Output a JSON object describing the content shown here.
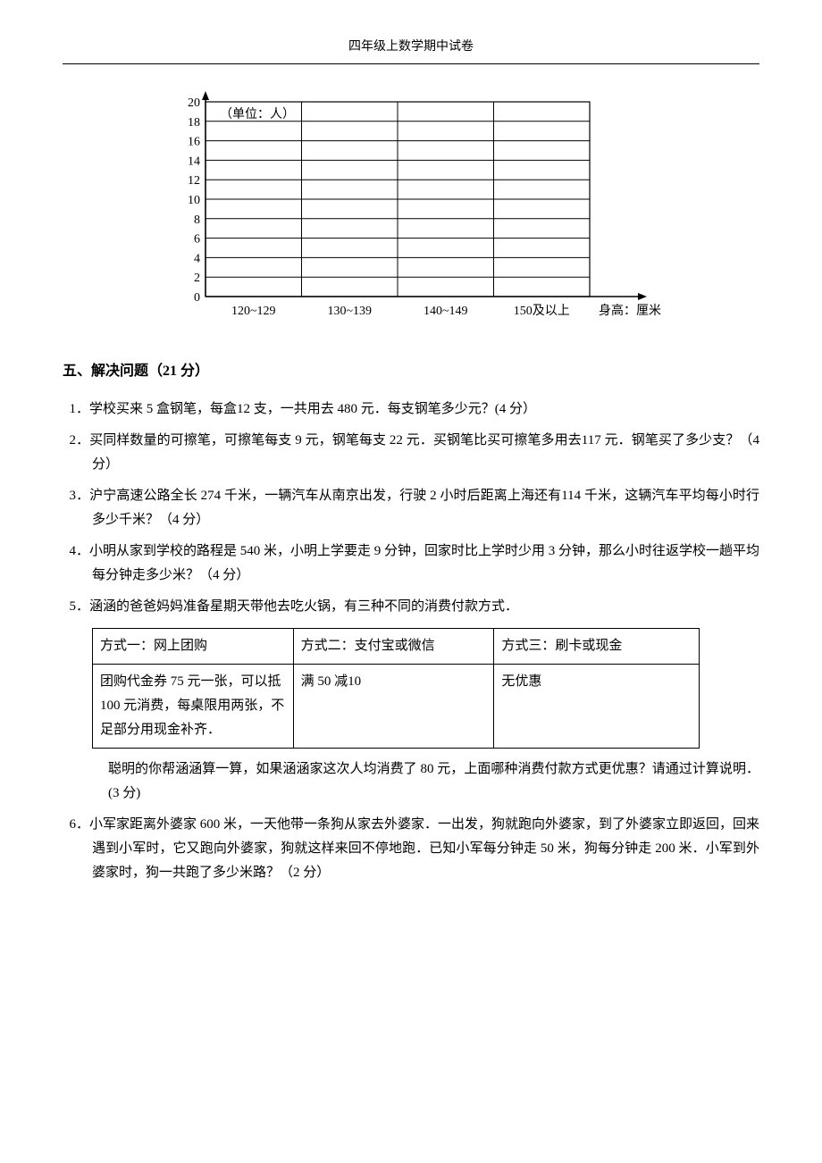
{
  "header": "四年级上数学期中试卷",
  "chart": {
    "type": "bar",
    "unit_label": "（单位：人）",
    "y_ticks": [
      0,
      2,
      4,
      6,
      8,
      10,
      12,
      14,
      16,
      18,
      20
    ],
    "categories": [
      "120~129",
      "130~139",
      "140~149",
      "150及以上"
    ],
    "x_axis_label": "身高：厘米",
    "bar_fill": "#ffffff",
    "bar_stroke": "#000000",
    "axis_color": "#000000",
    "grid_color": "#000000",
    "background": "#ffffff",
    "bar_width_ratio": 0.4,
    "label_fontsize": 14,
    "tick_fontsize": 14
  },
  "section5": {
    "title": "五、解决问题（21 分）",
    "problems": {
      "p1": "1．学校买来 5 盒钢笔，每盒12 支，一共用去 480 元．每支钢笔多少元？(4 分）",
      "p2": "2．买同样数量的可擦笔，可擦笔每支 9 元，钢笔每支 22 元．买钢笔比买可擦笔多用去117 元．钢笔买了多少支？（4 分）",
      "p3": "3．沪宁高速公路全长 274 千米，一辆汽车从南京出发，行驶 2 小时后距离上海还有114 千米，这辆汽车平均每小时行多少千米？（4 分）",
      "p4": "4．小明从家到学校的路程是 540 米，小明上学要走 9 分钟，回家时比上学时少用 3 分钟，那么小时往返学校一趟平均每分钟走多少米？（4 分）",
      "p5_intro": "5．涵涵的爸爸妈妈准备星期天带他去吃火锅，有三种不同的消费付款方式．",
      "p5_table": {
        "row1": {
          "c1": "方式一：网上团购",
          "c2": "方式二：支付宝或微信",
          "c3": "方式三：刷卡或现金"
        },
        "row2": {
          "c1": "团购代金券 75 元一张，可以抵100 元消费，每桌限用两张，不足部分用现金补齐．",
          "c2": "满 50 减10",
          "c3": "无优惠"
        }
      },
      "p5_after": "聪明的你帮涵涵算一算，如果涵涵家这次人均消费了 80 元，上面哪种消费付款方式更优惠？请通过计算说明．(3 分)",
      "p6": "6．小军家距离外婆家 600 米，一天他带一条狗从家去外婆家．一出发，狗就跑向外婆家，到了外婆家立即返回，回来遇到小军时，它又跑向外婆家，狗就这样来回不停地跑．已知小军每分钟走 50 米，狗每分钟走 200 米．小军到外婆家时，狗一共跑了多少米路？（2 分）"
    }
  }
}
